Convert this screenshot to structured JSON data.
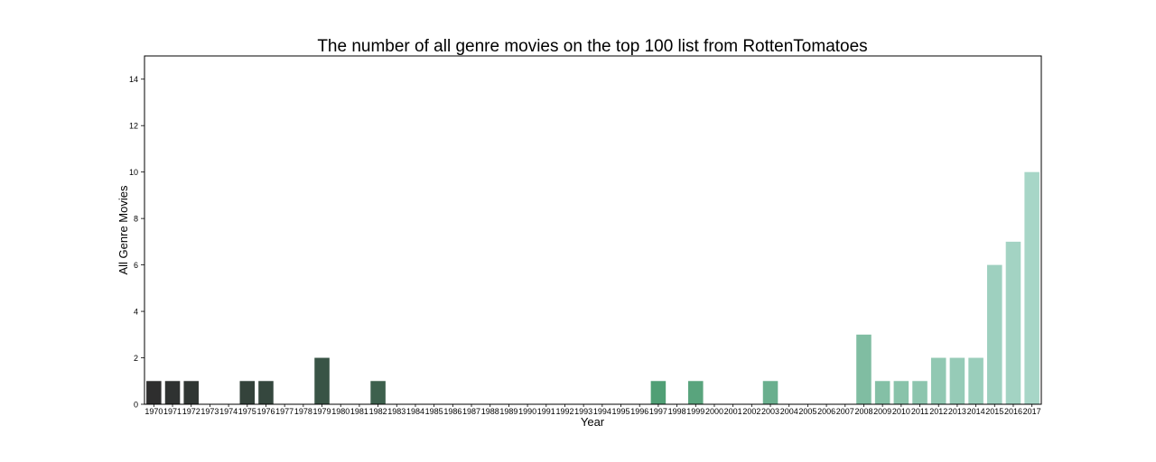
{
  "chart_data": {
    "type": "bar",
    "title": "The number of all genre movies on the top 100 list from RottenTomatoes",
    "xlabel": "Year",
    "ylabel": "All Genre Movies",
    "ylim": [
      0,
      15
    ],
    "yticks": [
      0,
      2,
      4,
      6,
      8,
      10,
      12,
      14
    ],
    "grid": false,
    "categories": [
      "1970",
      "1971",
      "1972",
      "1973",
      "1974",
      "1975",
      "1976",
      "1977",
      "1978",
      "1979",
      "1980",
      "1981",
      "1982",
      "1983",
      "1984",
      "1985",
      "1986",
      "1987",
      "1988",
      "1989",
      "1990",
      "1991",
      "1992",
      "1993",
      "1994",
      "1995",
      "1996",
      "1997",
      "1998",
      "1999",
      "2000",
      "2001",
      "2002",
      "2003",
      "2004",
      "2005",
      "2006",
      "2007",
      "2008",
      "2009",
      "2010",
      "2011",
      "2012",
      "2013",
      "2014",
      "2015",
      "2016",
      "2017"
    ],
    "values": [
      1,
      1,
      1,
      0,
      0,
      1,
      1,
      0,
      0,
      2,
      0,
      0,
      1,
      0,
      0,
      0,
      0,
      0,
      0,
      0,
      0,
      0,
      0,
      0,
      0,
      0,
      0,
      1,
      0,
      1,
      0,
      0,
      0,
      1,
      0,
      0,
      0,
      0,
      3,
      1,
      1,
      1,
      2,
      2,
      2,
      6,
      7,
      10
    ],
    "palette": {
      "start": "#2e2e2e",
      "mid": "#4f9e74",
      "end": "#a7d6c7"
    }
  }
}
